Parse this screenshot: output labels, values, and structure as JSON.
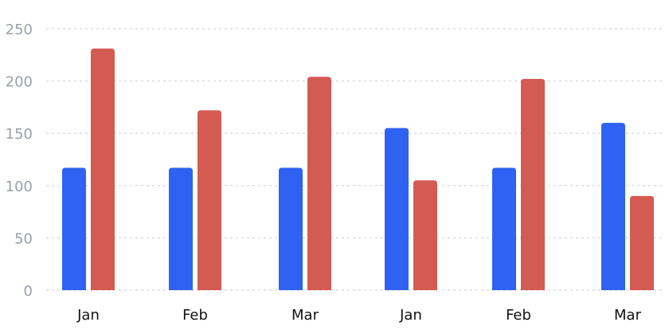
{
  "chart_data": {
    "type": "bar",
    "categories": [
      "Jan",
      "Feb",
      "Mar",
      "Jan",
      "Feb",
      "Mar"
    ],
    "series": [
      {
        "values": [
          117,
          117,
          117,
          155,
          117,
          160
        ],
        "color": "#2f62f2"
      },
      {
        "values": [
          231,
          172,
          204,
          105,
          202,
          90
        ],
        "color": "#d45b52"
      }
    ],
    "ylim": [
      0,
      250
    ],
    "yticks": [
      "0",
      "50",
      "100",
      "150",
      "200",
      "250"
    ],
    "grid": true,
    "xlabel": "",
    "ylabel": "",
    "title": ""
  }
}
